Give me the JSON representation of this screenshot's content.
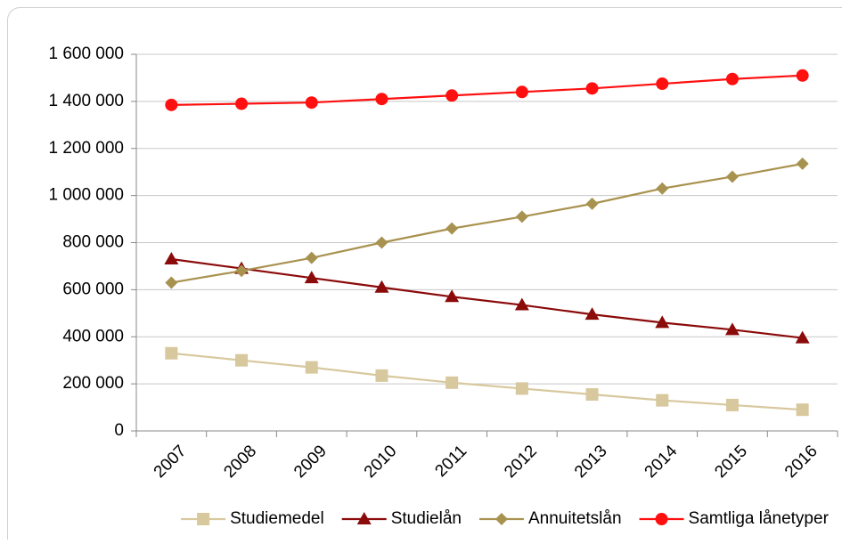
{
  "chart_data": {
    "type": "line",
    "categories": [
      "2007",
      "2008",
      "2009",
      "2010",
      "2011",
      "2012",
      "2013",
      "2014",
      "2015",
      "2016"
    ],
    "series": [
      {
        "name": "Studiemedel",
        "color": "#d8c89e",
        "marker": "square",
        "values": [
          330000,
          300000,
          270000,
          235000,
          205000,
          180000,
          155000,
          130000,
          110000,
          90000
        ]
      },
      {
        "name": "Studielån",
        "color": "#8b0a0a",
        "marker": "triangle",
        "values": [
          730000,
          690000,
          650000,
          610000,
          570000,
          535000,
          495000,
          460000,
          430000,
          395000
        ]
      },
      {
        "name": "Annuitetslån",
        "color": "#a8924f",
        "marker": "diamond",
        "values": [
          630000,
          680000,
          735000,
          800000,
          860000,
          910000,
          965000,
          1030000,
          1080000,
          1135000
        ]
      },
      {
        "name": "Samtliga lånetyper",
        "color": "#ff1010",
        "marker": "circle",
        "values": [
          1385000,
          1390000,
          1395000,
          1410000,
          1425000,
          1440000,
          1455000,
          1475000,
          1495000,
          1510000
        ]
      }
    ],
    "ylim": [
      0,
      1600000
    ],
    "yticks": [
      0,
      {
        "value": 200000,
        "label": "200 000"
      },
      {
        "value": 400000,
        "label": "400 000"
      },
      {
        "value": 600000,
        "label": "600 000"
      },
      {
        "value": 800000,
        "label": "800 000"
      },
      {
        "value": 1000000,
        "label": "1 000 000"
      },
      {
        "value": 1200000,
        "label": "1 200 000"
      },
      {
        "value": 1400000,
        "label": "1 400 000"
      },
      {
        "value": 1600000,
        "label": "1 600 000"
      }
    ],
    "grid": true,
    "legend": "bottom"
  }
}
